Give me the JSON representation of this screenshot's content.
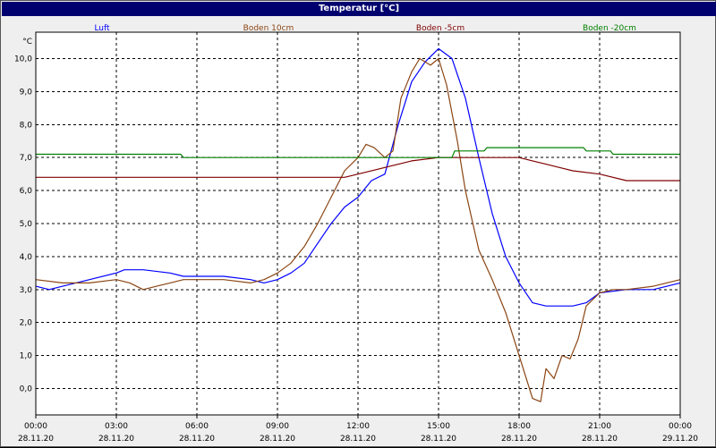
{
  "window": {
    "title": "Temperatur [°C]"
  },
  "chart_data": {
    "type": "line",
    "title": "Temperatur [°C]",
    "ylabel": "°C",
    "xlabel": "",
    "ylim": [
      -0.8,
      10.8
    ],
    "xlim_hours": [
      0,
      24
    ],
    "grid": true,
    "legend_placement": "top",
    "y_ticks": [
      "0,0",
      "1,0",
      "2,0",
      "3,0",
      "4,0",
      "5,0",
      "6,0",
      "7,0",
      "8,0",
      "9,0",
      "10,0"
    ],
    "y_tick_values": [
      0,
      1,
      2,
      3,
      4,
      5,
      6,
      7,
      8,
      9,
      10
    ],
    "x_ticks": [
      {
        "time": "00:00",
        "date": "28.11.20"
      },
      {
        "time": "03:00",
        "date": "28.11.20"
      },
      {
        "time": "06:00",
        "date": "28.11.20"
      },
      {
        "time": "09:00",
        "date": "28.11.20"
      },
      {
        "time": "12:00",
        "date": "28.11.20"
      },
      {
        "time": "15:00",
        "date": "28.11.20"
      },
      {
        "time": "18:00",
        "date": "28.11.20"
      },
      {
        "time": "21:00",
        "date": "28.11.20"
      },
      {
        "time": "00:00",
        "date": "29.11.20"
      }
    ],
    "series": [
      {
        "name": "Luft",
        "color": "#0000ff",
        "x": [
          0,
          0.5,
          1,
          2,
          3,
          3.3,
          4,
          5,
          5.5,
          6,
          7,
          8,
          8.5,
          9,
          9.5,
          10,
          10.5,
          11,
          11.5,
          12,
          12.5,
          13,
          13.5,
          14,
          14.5,
          15,
          15.5,
          16,
          16.5,
          17,
          17.5,
          18,
          18.5,
          19,
          19.5,
          20,
          20.5,
          21,
          22,
          23,
          24
        ],
        "y": [
          3.1,
          3.0,
          3.1,
          3.3,
          3.5,
          3.6,
          3.6,
          3.5,
          3.4,
          3.4,
          3.4,
          3.3,
          3.2,
          3.3,
          3.5,
          3.8,
          4.4,
          5.0,
          5.5,
          5.8,
          6.3,
          6.5,
          8.0,
          9.3,
          9.9,
          10.3,
          10.0,
          8.8,
          7.0,
          5.3,
          4.0,
          3.2,
          2.6,
          2.5,
          2.5,
          2.5,
          2.6,
          2.9,
          3.0,
          3.0,
          3.2
        ]
      },
      {
        "name": "Boden 10cm",
        "color": "#8b4513",
        "x": [
          0,
          1,
          2,
          3,
          3.5,
          4,
          4.5,
          5,
          5.5,
          6,
          7,
          8,
          8.5,
          9,
          9.5,
          10,
          10.5,
          11,
          11.5,
          12,
          12.3,
          12.6,
          13,
          13.3,
          13.6,
          14,
          14.3,
          14.7,
          15,
          15.3,
          15.7,
          16,
          16.5,
          17,
          17.5,
          18,
          18.5,
          18.8,
          19,
          19.3,
          19.6,
          19.9,
          20.2,
          20.5,
          21,
          21.5,
          22,
          23,
          24
        ],
        "y": [
          3.3,
          3.2,
          3.2,
          3.3,
          3.2,
          3.0,
          3.1,
          3.2,
          3.3,
          3.3,
          3.3,
          3.2,
          3.3,
          3.5,
          3.8,
          4.3,
          5.0,
          5.8,
          6.6,
          7.0,
          7.4,
          7.3,
          7.0,
          7.2,
          8.8,
          9.6,
          10.0,
          9.8,
          10.0,
          9.2,
          7.5,
          6.0,
          4.2,
          3.3,
          2.3,
          1.0,
          -0.3,
          -0.4,
          0.6,
          0.3,
          1.0,
          0.9,
          1.5,
          2.5,
          2.9,
          3.0,
          3.0,
          3.1,
          3.3
        ]
      },
      {
        "name": "Boden -5cm",
        "color": "#800000",
        "x": [
          0,
          5,
          11.5,
          12,
          13,
          14,
          15,
          16,
          17.5,
          18,
          18.5,
          19,
          19.5,
          20,
          21,
          22,
          24
        ],
        "y": [
          6.4,
          6.4,
          6.4,
          6.5,
          6.7,
          6.9,
          7.0,
          7.0,
          7.0,
          7.0,
          6.9,
          6.8,
          6.7,
          6.6,
          6.5,
          6.3,
          6.3
        ]
      },
      {
        "name": "Boden -20cm",
        "color": "#008000",
        "x": [
          0,
          5.4,
          5.5,
          15.5,
          15.6,
          16.7,
          16.8,
          20.4,
          20.5,
          21.4,
          21.5,
          24
        ],
        "y": [
          7.1,
          7.1,
          7.0,
          7.0,
          7.2,
          7.2,
          7.3,
          7.3,
          7.2,
          7.2,
          7.1,
          7.1
        ]
      }
    ]
  }
}
